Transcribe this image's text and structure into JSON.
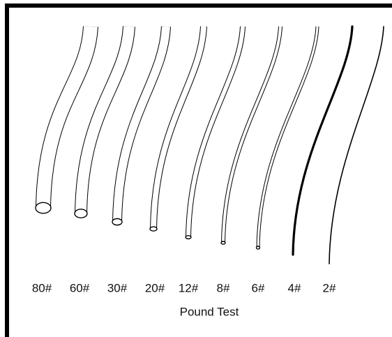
{
  "labels": [
    "80#",
    "60#",
    "30#",
    "20#",
    "12#",
    "8#",
    "6#",
    "4#",
    "2#"
  ],
  "caption": "Pound Test"
}
